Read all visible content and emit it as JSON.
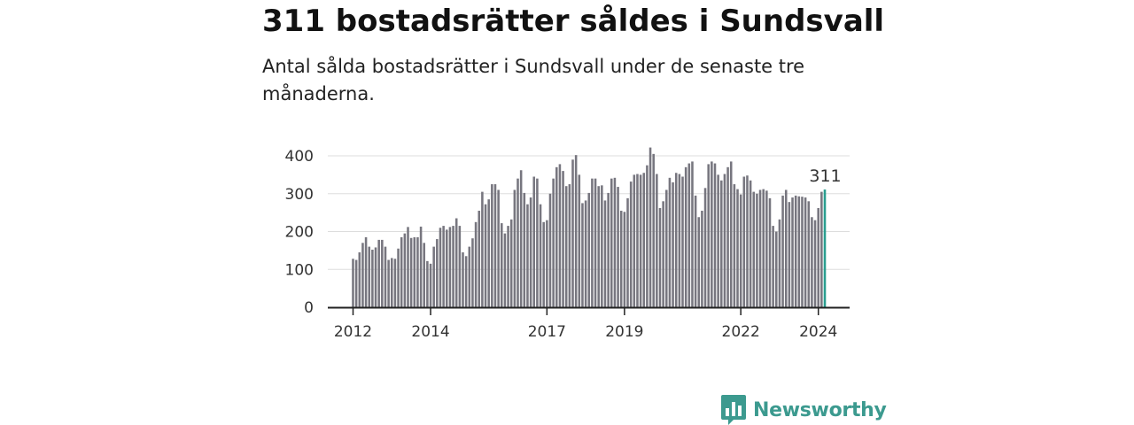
{
  "title": "311 bostadsrätter såldes i Sundsvall",
  "subtitle": "Antal sålda bostadsrätter i Sundsvall under de senaste tre månaderna.",
  "brand": "Newsworthy",
  "colors": {
    "bar": "#77767f",
    "highlight": "#2a9d8f",
    "grid": "#dddddd",
    "axis": "#222222",
    "brand": "#3c9a8f"
  },
  "chart_data": {
    "type": "bar",
    "x_start": "2012-01",
    "x_end": "2024-03",
    "interval": "month",
    "ylim": [
      0,
      400
    ],
    "yticks": [
      0,
      100,
      200,
      300,
      400
    ],
    "xticks": [
      {
        "label": "2012",
        "date": "2012-01"
      },
      {
        "label": "2014",
        "date": "2014-01"
      },
      {
        "label": "2017",
        "date": "2017-01"
      },
      {
        "label": "2019",
        "date": "2019-01"
      },
      {
        "label": "2022",
        "date": "2022-01"
      },
      {
        "label": "2024",
        "date": "2024-01"
      }
    ],
    "highlight": {
      "date": "2024-03",
      "value": 311,
      "label": "311"
    },
    "values": [
      128,
      125,
      145,
      170,
      185,
      160,
      152,
      158,
      178,
      178,
      160,
      125,
      130,
      128,
      155,
      185,
      195,
      212,
      183,
      185,
      185,
      213,
      170,
      122,
      115,
      160,
      180,
      210,
      215,
      205,
      212,
      215,
      235,
      215,
      145,
      135,
      160,
      182,
      225,
      255,
      305,
      272,
      285,
      325,
      325,
      310,
      222,
      195,
      215,
      232,
      310,
      340,
      362,
      302,
      272,
      290,
      345,
      340,
      272,
      225,
      230,
      300,
      340,
      370,
      378,
      360,
      320,
      325,
      390,
      402,
      350,
      275,
      282,
      302,
      340,
      340,
      320,
      322,
      282,
      302,
      340,
      342,
      318,
      255,
      252,
      288,
      332,
      350,
      352,
      350,
      355,
      375,
      422,
      405,
      352,
      262,
      280,
      310,
      342,
      330,
      355,
      352,
      345,
      370,
      380,
      385,
      295,
      238,
      255,
      315,
      378,
      385,
      380,
      350,
      335,
      352,
      370,
      385,
      325,
      312,
      298,
      345,
      348,
      335,
      305,
      300,
      310,
      312,
      308,
      288,
      215,
      200,
      232,
      295,
      310,
      278,
      290,
      295,
      293,
      292,
      290,
      280,
      238,
      230,
      262,
      305,
      311
    ]
  }
}
